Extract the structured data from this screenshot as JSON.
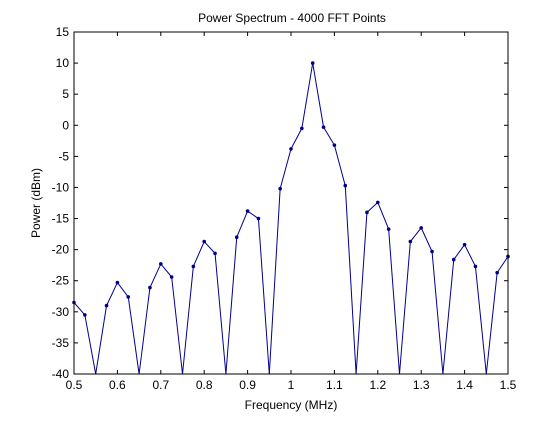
{
  "chart_data": {
    "type": "line",
    "title": "Power Spectrum - 4000 FFT Points",
    "xlabel": "Frequency (MHz)",
    "ylabel": "Power (dBm)",
    "xlim": [
      0.5,
      1.5
    ],
    "ylim": [
      -40,
      15
    ],
    "xticks": [
      0.5,
      0.6,
      0.7,
      0.8,
      0.9,
      1.0,
      1.1,
      1.2,
      1.3,
      1.4,
      1.5
    ],
    "xtick_labels": [
      "0.5",
      "0.6",
      "0.7",
      "0.8",
      "0.9",
      "1",
      "1.1",
      "1.2",
      "1.3",
      "1.4",
      "1.5"
    ],
    "yticks": [
      -40,
      -35,
      -30,
      -25,
      -20,
      -15,
      -10,
      -5,
      0,
      5,
      10,
      15
    ],
    "ytick_labels": [
      "-40",
      "-35",
      "-30",
      "-25",
      "-20",
      "-15",
      "-10",
      "-5",
      "0",
      "5",
      "10",
      "15"
    ],
    "grid": false,
    "line_color": "#00008b",
    "x": [
      0.5,
      0.525,
      0.55,
      0.575,
      0.6,
      0.625,
      0.65,
      0.675,
      0.7,
      0.725,
      0.75,
      0.775,
      0.8,
      0.825,
      0.85,
      0.875,
      0.9,
      0.925,
      0.95,
      0.975,
      1.0,
      1.025,
      1.05,
      1.075,
      1.1,
      1.125,
      1.15,
      1.175,
      1.2,
      1.225,
      1.25,
      1.275,
      1.3,
      1.325,
      1.35,
      1.375,
      1.4,
      1.425,
      1.45,
      1.475,
      1.5
    ],
    "y": [
      -28.5,
      -30.5,
      null,
      -29.0,
      -25.3,
      -27.6,
      null,
      -26.1,
      -22.3,
      -24.4,
      null,
      -22.7,
      -18.7,
      -20.6,
      null,
      -18.0,
      -13.8,
      -15.0,
      null,
      -10.2,
      -3.8,
      -0.5,
      10.0,
      -0.3,
      -3.2,
      -9.7,
      null,
      -14.0,
      -12.4,
      -16.7,
      null,
      -18.7,
      -16.5,
      -20.3,
      null,
      -21.6,
      -19.2,
      -22.7,
      null,
      -23.7,
      -21.1
    ]
  }
}
